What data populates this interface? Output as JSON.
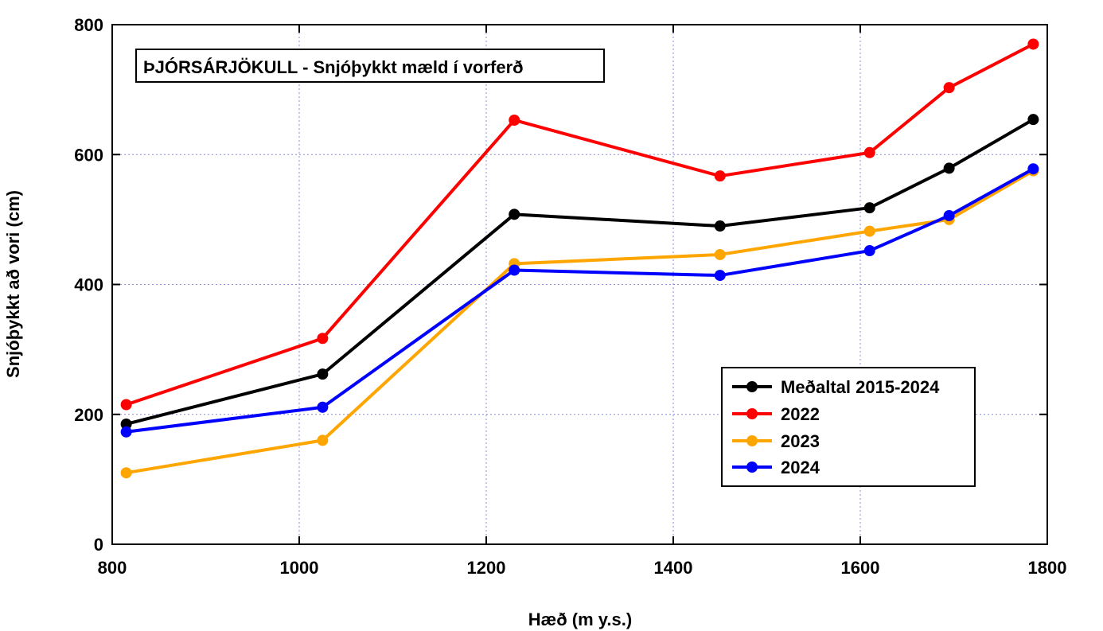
{
  "chart_data": {
    "type": "line",
    "title": "ÞJÓRSÁRJÖKULL - Snjóþykkt mæld í vorferð",
    "xlabel": "Hæð (m y.s.)",
    "ylabel": "Snjóþykkt að vori (cm)",
    "xlim": [
      800,
      1800
    ],
    "ylim": [
      0,
      800
    ],
    "xticks": [
      800,
      1000,
      1200,
      1400,
      1600,
      1800
    ],
    "yticks": [
      0,
      200,
      400,
      600,
      800
    ],
    "x": [
      815,
      1025,
      1230,
      1450,
      1610,
      1695,
      1785
    ],
    "grid": true,
    "legend_position": "lower-right",
    "series": [
      {
        "name": "Meðaltal 2015-2024",
        "color": "#000000",
        "values": [
          185,
          262,
          508,
          490,
          518,
          579,
          654
        ]
      },
      {
        "name": "2022",
        "color": "#ff0000",
        "values": [
          215,
          317,
          653,
          567,
          603,
          703,
          770
        ]
      },
      {
        "name": "2023",
        "color": "#ffa500",
        "values": [
          110,
          160,
          432,
          446,
          482,
          500,
          575
        ]
      },
      {
        "name": "2024",
        "color": "#0000ff",
        "values": [
          173,
          211,
          422,
          414,
          452,
          506,
          578
        ]
      }
    ]
  }
}
